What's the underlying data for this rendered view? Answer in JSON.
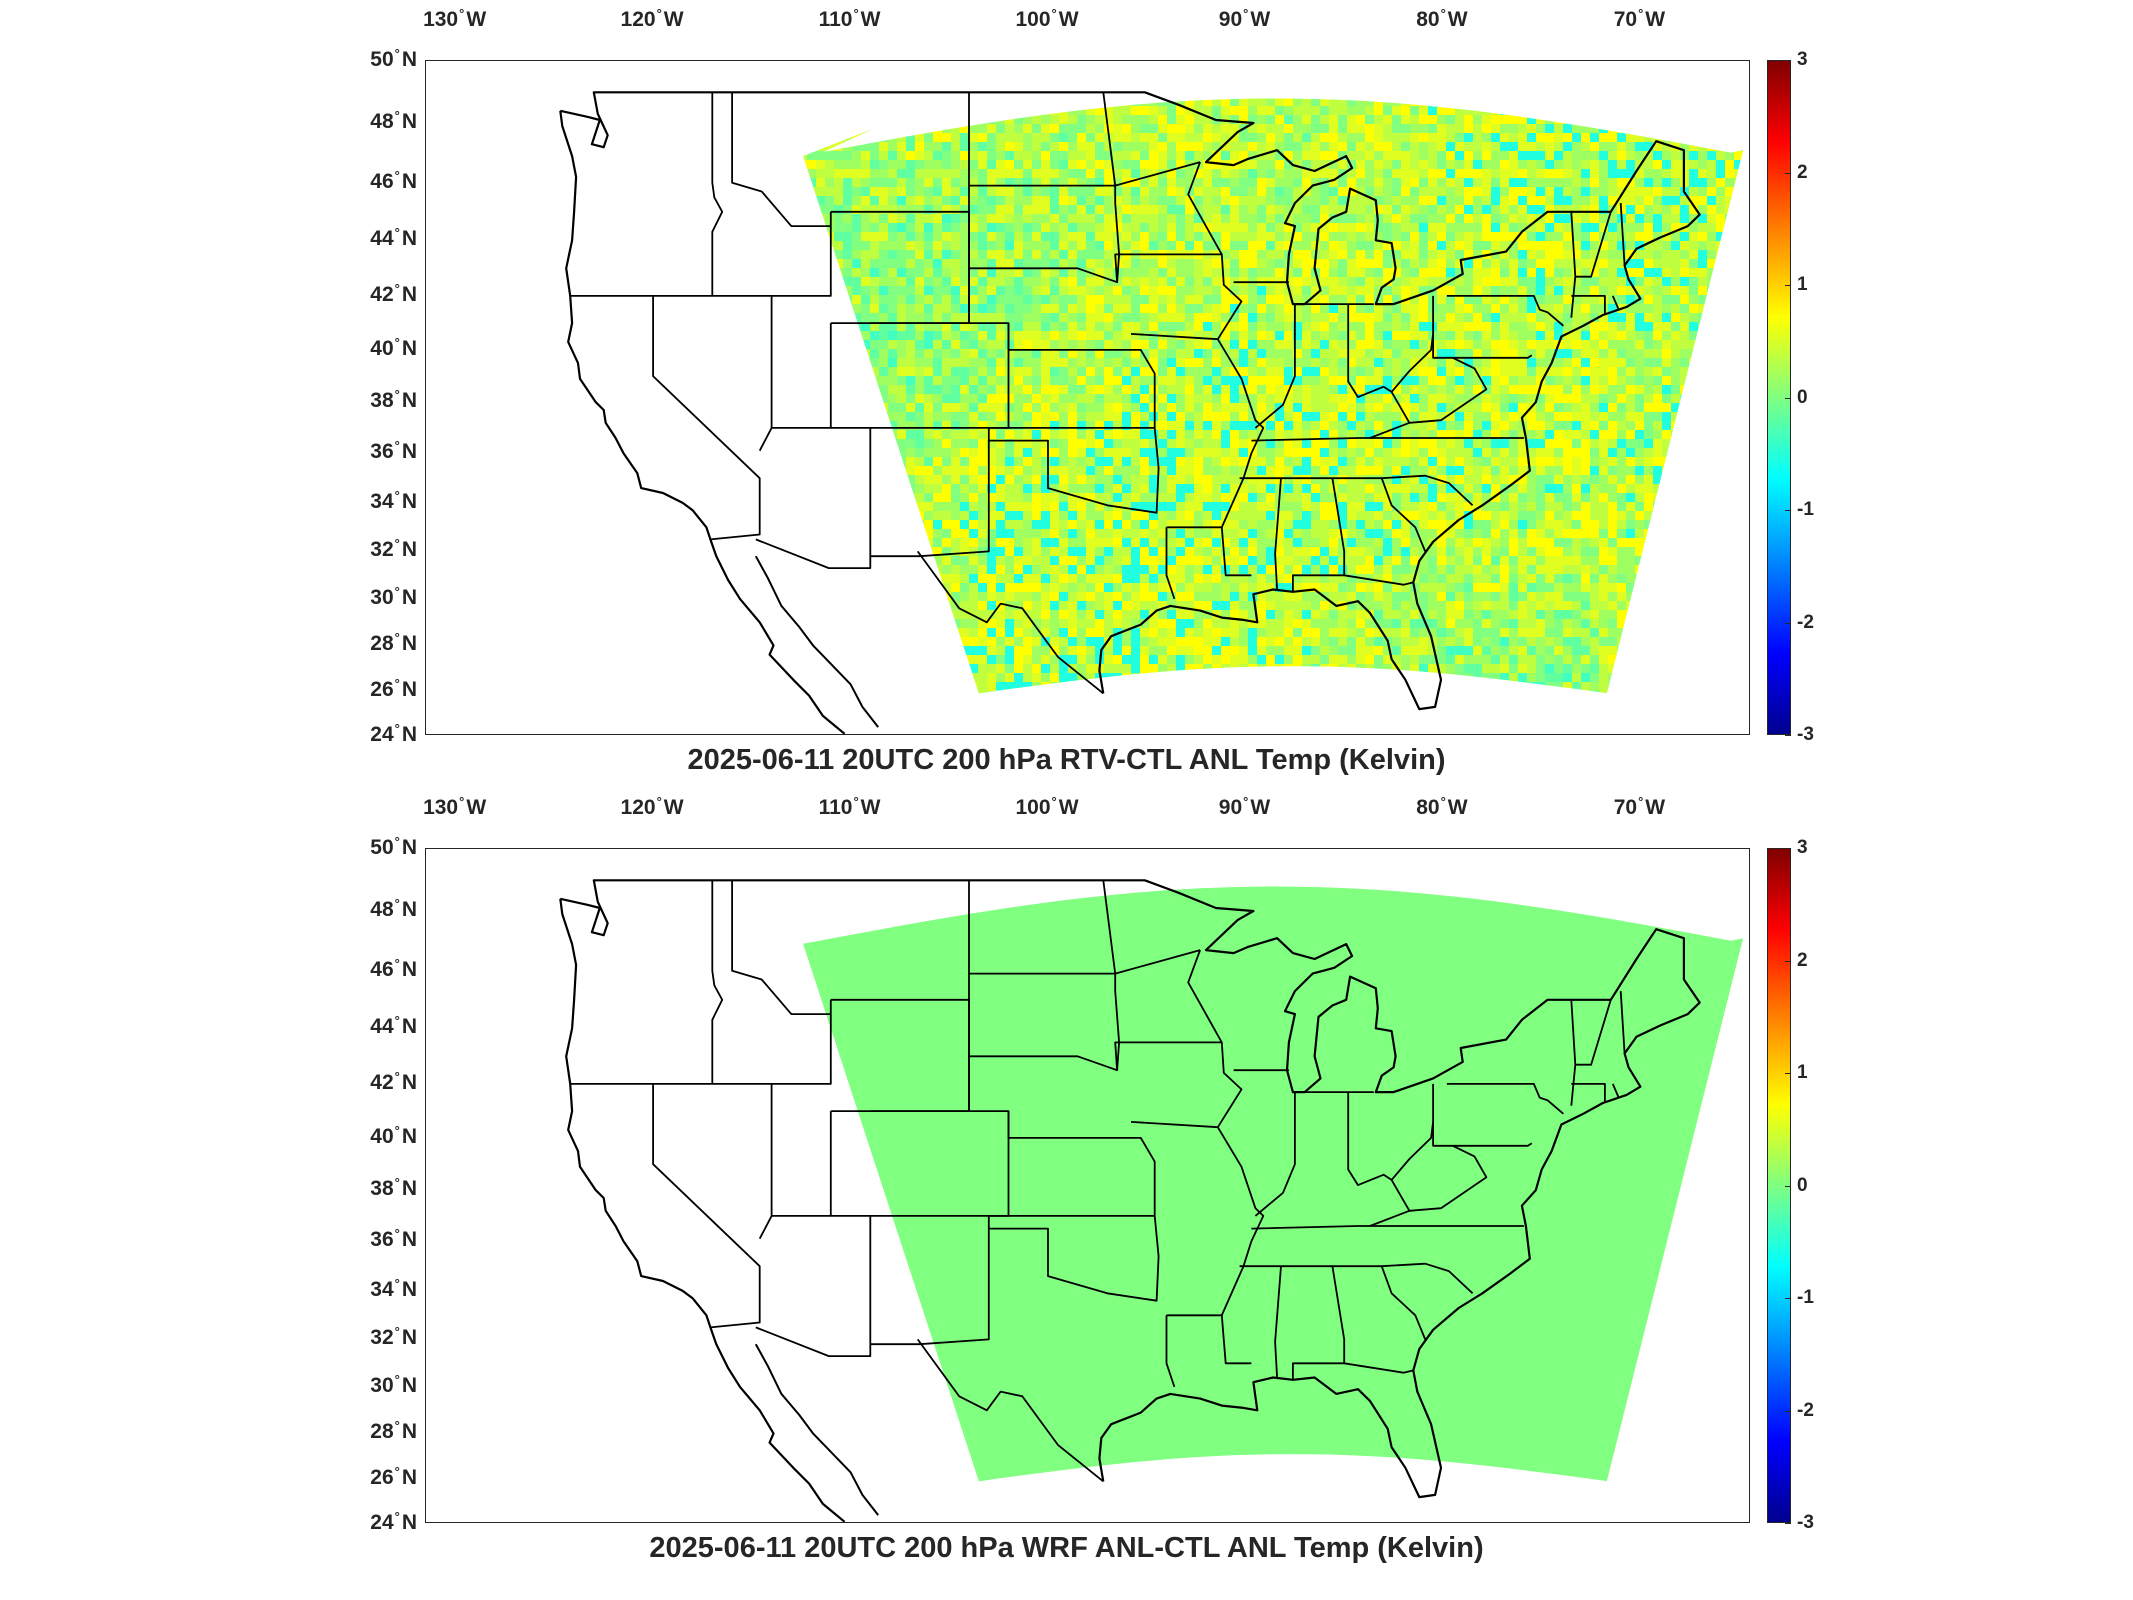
{
  "panels": [
    {
      "title": "2025-06-11 20UTC 200 hPa RTV-CTL ANL Temp (Kelvin)",
      "field": "RTV-CTL ANL Temp",
      "pattern": "noisy"
    },
    {
      "title": "2025-06-11 20UTC 200 hPa WRF ANL-CTL ANL Temp (Kelvin)",
      "field": "WRF ANL-CTL ANL Temp",
      "pattern": "uniform"
    }
  ],
  "lon_labels": [
    {
      "deg": "130",
      "hem": "W"
    },
    {
      "deg": "120",
      "hem": "W"
    },
    {
      "deg": "110",
      "hem": "W"
    },
    {
      "deg": "100",
      "hem": "W"
    },
    {
      "deg": "90",
      "hem": "W"
    },
    {
      "deg": "80",
      "hem": "W"
    },
    {
      "deg": "70",
      "hem": "W"
    }
  ],
  "lat_labels": [
    {
      "deg": "50",
      "hem": "N"
    },
    {
      "deg": "48",
      "hem": "N"
    },
    {
      "deg": "46",
      "hem": "N"
    },
    {
      "deg": "44",
      "hem": "N"
    },
    {
      "deg": "42",
      "hem": "N"
    },
    {
      "deg": "40",
      "hem": "N"
    },
    {
      "deg": "38",
      "hem": "N"
    },
    {
      "deg": "36",
      "hem": "N"
    },
    {
      "deg": "34",
      "hem": "N"
    },
    {
      "deg": "32",
      "hem": "N"
    },
    {
      "deg": "30",
      "hem": "N"
    },
    {
      "deg": "28",
      "hem": "N"
    },
    {
      "deg": "26",
      "hem": "N"
    },
    {
      "deg": "24",
      "hem": "N"
    }
  ],
  "colorbar": {
    "ticks": [
      "3",
      "2",
      "1",
      "0",
      "-1",
      "-2",
      "-3"
    ],
    "min": -3,
    "max": 3,
    "colormap": "jet"
  },
  "colors": {
    "uniform_fill": "#80ff80",
    "coastline": "#000000"
  }
}
